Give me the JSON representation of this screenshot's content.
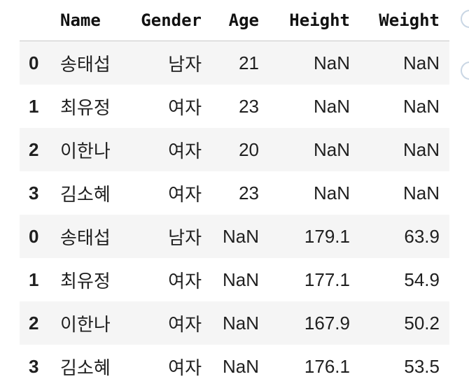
{
  "table": {
    "columns": [
      "Name",
      "Gender",
      "Age",
      "Height",
      "Weight"
    ],
    "rows": [
      {
        "index": "0",
        "name": "송태섭",
        "gender": "남자",
        "age": "21",
        "height": "NaN",
        "weight": "NaN"
      },
      {
        "index": "1",
        "name": "최유정",
        "gender": "여자",
        "age": "23",
        "height": "NaN",
        "weight": "NaN"
      },
      {
        "index": "2",
        "name": "이한나",
        "gender": "여자",
        "age": "20",
        "height": "NaN",
        "weight": "NaN"
      },
      {
        "index": "3",
        "name": "김소혜",
        "gender": "여자",
        "age": "23",
        "height": "NaN",
        "weight": "NaN"
      },
      {
        "index": "0",
        "name": "송태섭",
        "gender": "남자",
        "age": "NaN",
        "height": "179.1",
        "weight": "63.9"
      },
      {
        "index": "1",
        "name": "최유정",
        "gender": "여자",
        "age": "NaN",
        "height": "177.1",
        "weight": "54.9"
      },
      {
        "index": "2",
        "name": "이한나",
        "gender": "여자",
        "age": "NaN",
        "height": "167.9",
        "weight": "50.2"
      },
      {
        "index": "3",
        "name": "김소혜",
        "gender": "여자",
        "age": "NaN",
        "height": "176.1",
        "weight": "53.5"
      }
    ]
  },
  "colors": {
    "stripe": "#f5f5f5",
    "header_border": "#c8c8c8",
    "text": "#1f1f1f",
    "edge_circle": "#c9d6e4"
  }
}
